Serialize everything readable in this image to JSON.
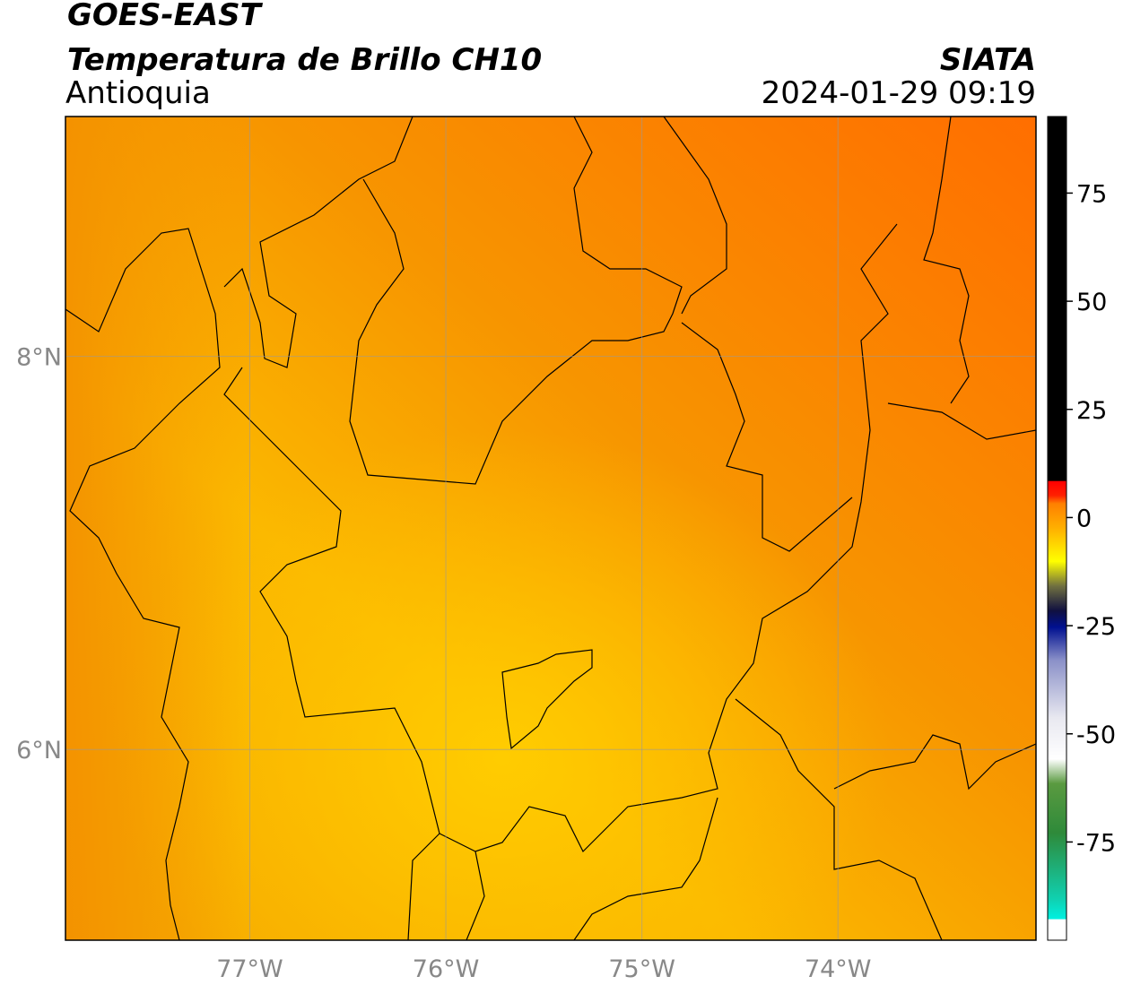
{
  "header": {
    "title": "GOES-EAST",
    "subtitle": "Temperatura de Brillo CH10",
    "region": "Antioquia",
    "source": "SIATA",
    "datetime": "2024-01-29 09:19"
  },
  "map": {
    "xlim": [
      -77.94,
      -72.99
    ],
    "ylim": [
      5.03,
      9.22
    ],
    "grid": true,
    "xticks": [
      {
        "value": -77,
        "label": "77°W"
      },
      {
        "value": -76,
        "label": "76°W"
      },
      {
        "value": -75,
        "label": "75°W"
      },
      {
        "value": -74,
        "label": "74°W"
      }
    ],
    "yticks": [
      {
        "value": 8,
        "label": "8°N"
      },
      {
        "value": 6,
        "label": "6°N"
      }
    ]
  },
  "colorbar": {
    "lim": [
      -97.7,
      92.7
    ],
    "ticks": [
      75,
      50,
      25,
      0,
      -25,
      -50,
      -75
    ]
  }
}
